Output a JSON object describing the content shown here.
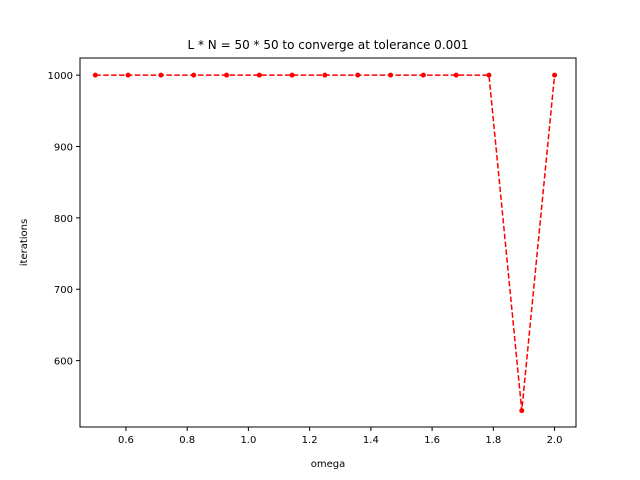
{
  "chart_data": {
    "type": "line",
    "title": "L * N = 50 * 50 to converge at tolerance 0.001",
    "xlabel": "omega",
    "ylabel": "iterations",
    "xlim": [
      0.45,
      2.07
    ],
    "ylim": [
      507,
      1024
    ],
    "xticks": [
      0.6,
      0.8,
      1.0,
      1.2,
      1.4,
      1.6,
      1.8,
      2.0
    ],
    "xtick_labels": [
      "0.6",
      "0.8",
      "1.0",
      "1.2",
      "1.4",
      "1.6",
      "1.8",
      "2.0"
    ],
    "yticks": [
      600,
      700,
      800,
      900,
      1000
    ],
    "ytick_labels": [
      "600",
      "700",
      "800",
      "900",
      "1000"
    ],
    "grid": false,
    "series": [
      {
        "color": "#ff0000",
        "line_style": "dashed",
        "marker": "dot",
        "x": [
          0.5,
          0.6071,
          0.7143,
          0.8214,
          0.9286,
          1.0357,
          1.1429,
          1.25,
          1.3571,
          1.4643,
          1.5714,
          1.6786,
          1.7857,
          1.8929,
          2.0
        ],
        "y": [
          1000,
          1000,
          1000,
          1000,
          1000,
          1000,
          1000,
          1000,
          1000,
          1000,
          1000,
          1000,
          1000,
          530,
          1000
        ]
      }
    ]
  }
}
